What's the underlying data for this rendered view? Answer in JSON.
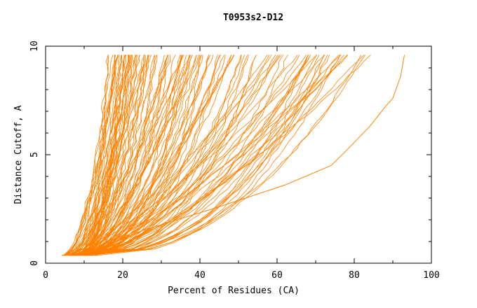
{
  "chart_data": {
    "type": "line",
    "title": "T0953s2-D12",
    "xlabel": "Percent of Residues (CA)",
    "ylabel": "Distance Cutoff, A",
    "xlim": [
      0,
      100
    ],
    "ylim": [
      0,
      10
    ],
    "x_ticks": [
      0,
      20,
      40,
      60,
      80,
      100
    ],
    "y_ticks": [
      0,
      5,
      10
    ],
    "grid": false,
    "legend": "none",
    "series_color": "#ff8000",
    "approx_series_count": 130,
    "y_range_of_curves": [
      0.35,
      9.6
    ],
    "curve_families": [
      {
        "x_at_y_min_range": [
          4,
          11
        ],
        "x_at_y_max_range": [
          16,
          32
        ],
        "weight": 0.42
      },
      {
        "x_at_y_min_range": [
          5,
          12
        ],
        "x_at_y_max_range": [
          32,
          56
        ],
        "weight": 0.28
      },
      {
        "x_at_y_min_range": [
          6,
          13
        ],
        "x_at_y_max_range": [
          56,
          85
        ],
        "weight": 0.3
      }
    ],
    "highlighted_series": [
      {
        "name": "",
        "points": [
          [
            10,
            0.4
          ],
          [
            25,
            1.5
          ],
          [
            45,
            2.6
          ],
          [
            62,
            3.6
          ],
          [
            70,
            4.2
          ],
          [
            74,
            4.5
          ],
          [
            78,
            5.2
          ],
          [
            84,
            6.3
          ],
          [
            88,
            7.2
          ],
          [
            90,
            7.6
          ],
          [
            92,
            8.6
          ],
          [
            93,
            9.6
          ]
        ]
      }
    ]
  }
}
